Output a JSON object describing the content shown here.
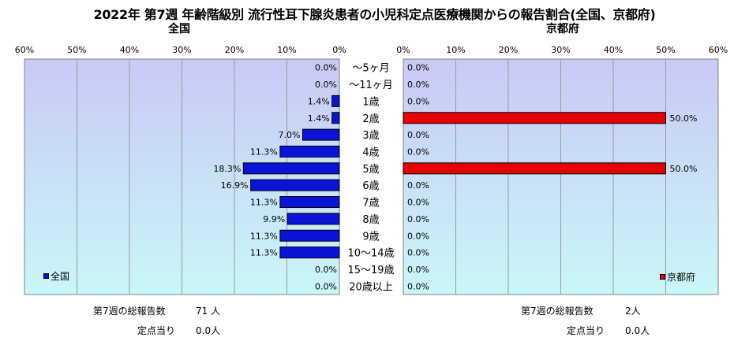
{
  "title": "2022年 第7週 年齢階級別 流行性耳下腺炎患者の小児科定点医療機関からの報告割合(全国、京都府)",
  "left_label": "全国",
  "right_label": "京都府",
  "left_legend": "全国",
  "right_legend": "京都府",
  "colors": {
    "national": "#0a14d6",
    "kyoto": "#e60000",
    "bg_top": "#c9c9f6",
    "bg_bottom": "#c9f7f7"
  },
  "footer": {
    "left_total_label": "第7週の総報告数",
    "left_total_value": "71 人",
    "left_per_label": "定点当り",
    "left_per_value": "0.0人",
    "right_total_label": "第7週の総報告数",
    "right_total_value": "2人",
    "right_per_label": "定点当り",
    "right_per_value": "0.0人"
  },
  "chart_data": [
    {
      "type": "bar",
      "orientation": "horizontal",
      "direction": "right-to-left",
      "subtitle": "全国",
      "categories": [
        "～5ヶ月",
        "～11ヶ月",
        "1歳",
        "2歳",
        "3歳",
        "4歳",
        "5歳",
        "6歳",
        "7歳",
        "8歳",
        "9歳",
        "10～14歳",
        "15～19歳",
        "20歳以上"
      ],
      "series": [
        {
          "name": "全国",
          "values": [
            0.0,
            0.0,
            1.4,
            1.4,
            7.0,
            11.3,
            18.3,
            16.9,
            11.3,
            9.9,
            11.3,
            11.3,
            0.0,
            0.0
          ]
        }
      ],
      "value_labels": [
        "0.0%",
        "0.0%",
        "1.4%",
        "1.4%",
        "7.0%",
        "11.3%",
        "18.3%",
        "16.9%",
        "11.3%",
        "9.9%",
        "11.3%",
        "11.3%",
        "0.0%",
        "0.0%"
      ],
      "xlim": [
        0,
        60
      ],
      "ticks": [
        "60%",
        "50%",
        "40%",
        "30%",
        "20%",
        "10%",
        "0%"
      ],
      "legend": "bottom-left",
      "grid": true
    },
    {
      "type": "bar",
      "orientation": "horizontal",
      "direction": "left-to-right",
      "subtitle": "京都府",
      "categories": [
        "～5ヶ月",
        "～11ヶ月",
        "1歳",
        "2歳",
        "3歳",
        "4歳",
        "5歳",
        "6歳",
        "7歳",
        "8歳",
        "9歳",
        "10～14歳",
        "15～19歳",
        "20歳以上"
      ],
      "series": [
        {
          "name": "京都府",
          "values": [
            0.0,
            0.0,
            0.0,
            50.0,
            0.0,
            0.0,
            50.0,
            0.0,
            0.0,
            0.0,
            0.0,
            0.0,
            0.0,
            0.0
          ]
        }
      ],
      "value_labels": [
        "0.0%",
        "0.0%",
        "0.0%",
        "50.0%",
        "0.0%",
        "0.0%",
        "50.0%",
        "0.0%",
        "0.0%",
        "0.0%",
        "0.0%",
        "0.0%",
        "0.0%",
        "0.0%"
      ],
      "xlim": [
        0,
        60
      ],
      "ticks": [
        "0%",
        "10%",
        "20%",
        "30%",
        "40%",
        "50%",
        "60%"
      ],
      "legend": "bottom-right",
      "grid": true
    }
  ]
}
